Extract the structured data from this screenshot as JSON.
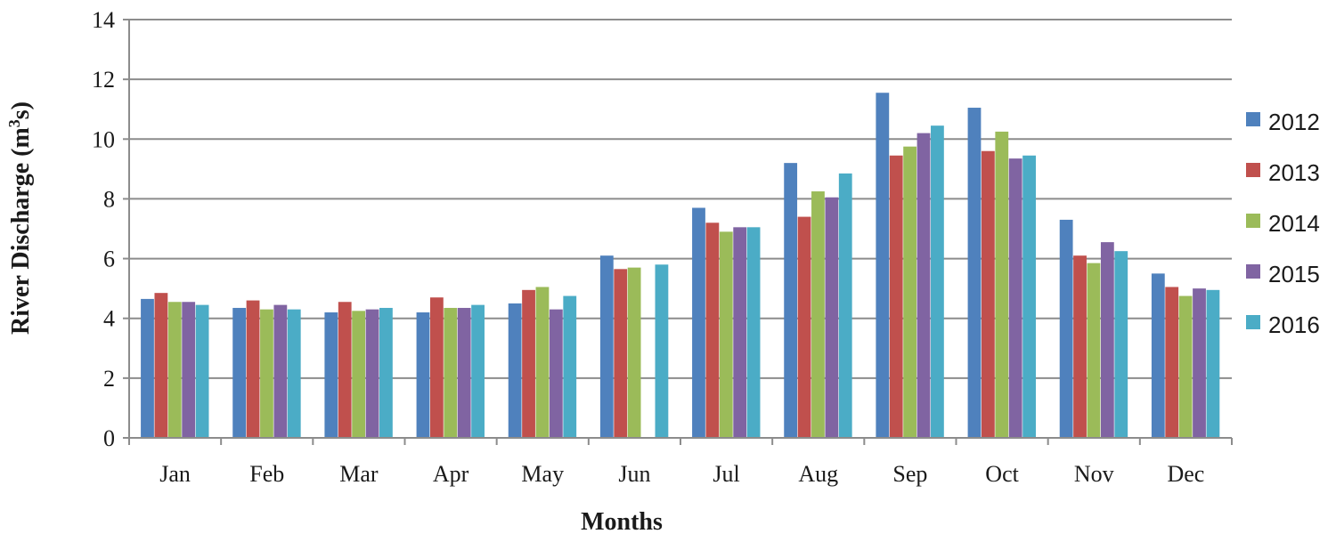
{
  "chart_data": {
    "type": "bar",
    "xlabel": "Months",
    "ylabel_main": "River Discharge (m",
    "ylabel_sup": "3",
    "ylabel_end": "s)",
    "ylim": [
      0,
      14
    ],
    "yticks": [
      0,
      2,
      4,
      6,
      8,
      10,
      12,
      14
    ],
    "grid": true,
    "legend_position": "right",
    "categories": [
      "Jan",
      "Feb",
      "Mar",
      "Apr",
      "May",
      "Jun",
      "Jul",
      "Aug",
      "Sep",
      "Oct",
      "Nov",
      "Dec"
    ],
    "series": [
      {
        "name": "2012",
        "color": "#4f81bd",
        "values": [
          4.65,
          4.35,
          4.2,
          4.2,
          4.5,
          6.1,
          7.7,
          9.2,
          11.55,
          11.05,
          7.3,
          5.5
        ]
      },
      {
        "name": "2013",
        "color": "#c0504d",
        "values": [
          4.85,
          4.6,
          4.55,
          4.7,
          4.95,
          5.65,
          7.2,
          7.4,
          9.45,
          9.6,
          6.1,
          5.05
        ]
      },
      {
        "name": "2014",
        "color": "#9bbb59",
        "values": [
          4.55,
          4.3,
          4.25,
          4.35,
          5.05,
          5.7,
          6.9,
          8.25,
          9.75,
          10.25,
          5.85,
          4.75
        ]
      },
      {
        "name": "2015",
        "color": "#8064a2",
        "values": [
          4.55,
          4.45,
          4.3,
          4.35,
          4.3,
          0,
          7.05,
          8.05,
          10.2,
          9.35,
          6.55,
          5.0
        ]
      },
      {
        "name": "2016",
        "color": "#4bacc6",
        "values": [
          4.45,
          4.3,
          4.35,
          4.45,
          4.75,
          5.8,
          7.05,
          8.85,
          10.45,
          9.45,
          6.25,
          4.95
        ]
      }
    ]
  }
}
